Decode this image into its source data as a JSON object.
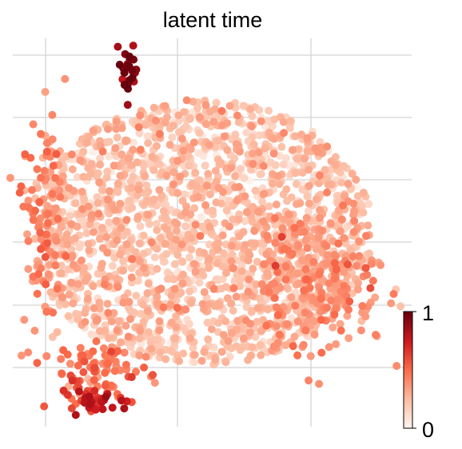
{
  "chart_data": {
    "type": "scatter",
    "title": "latent time",
    "xlabel": "",
    "ylabel": "",
    "xlim": [
      0,
      100
    ],
    "ylim": [
      0,
      100
    ],
    "grid": true,
    "axes_ticks_shown": false,
    "colormap": [
      "#fff5f0",
      "#fcbba1",
      "#fb6a4a",
      "#cb181d",
      "#67000d"
    ],
    "colorbar": {
      "label": "",
      "ticks": [
        "0",
        "1"
      ],
      "range": [
        0,
        1
      ],
      "placement": "right-bottom"
    },
    "clusters": [
      {
        "region": "main-body",
        "cx": 47,
        "cy": 50,
        "spread": [
          28,
          24
        ],
        "latent_time_mean": 0.22,
        "approx_points": 1900
      },
      {
        "region": "left-edge",
        "cx": 8,
        "cy": 52,
        "spread": [
          3,
          14
        ],
        "latent_time_mean": 0.38,
        "approx_points": 140
      },
      {
        "region": "right-lobe-bottom",
        "cx": 76,
        "cy": 38,
        "spread": [
          9,
          9
        ],
        "latent_time_mean": 0.36,
        "approx_points": 260
      },
      {
        "region": "lower-left-tail",
        "cx": 20,
        "cy": 13,
        "spread": [
          6,
          4
        ],
        "latent_time_mean": 0.48,
        "approx_points": 90
      },
      {
        "region": "terminal-bottom",
        "cx": 20,
        "cy": 6,
        "spread": [
          4,
          1.6
        ],
        "latent_time_mean": 0.72,
        "approx_points": 35
      },
      {
        "region": "terminal-top",
        "cx": 28.5,
        "cy": 92,
        "spread": [
          1.2,
          3
        ],
        "latent_time_mean": 0.93,
        "approx_points": 28
      }
    ]
  },
  "colors": {
    "grid": "#d4d4d4",
    "background": "#ffffff",
    "text": "#000000"
  }
}
